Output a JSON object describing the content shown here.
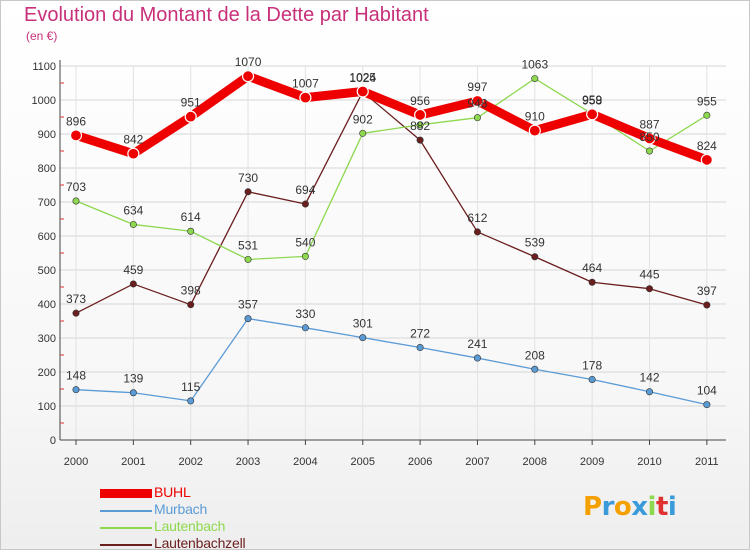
{
  "chart_data": {
    "type": "line",
    "title": "Evolution du Montant de la Dette par Habitant",
    "subtitle": "(en €)",
    "categories": [
      "2000",
      "2001",
      "2002",
      "2003",
      "2004",
      "2005",
      "2006",
      "2007",
      "2008",
      "2009",
      "2010",
      "2011"
    ],
    "ylim": [
      0,
      1100
    ],
    "yticks": [
      0,
      100,
      200,
      300,
      400,
      500,
      600,
      700,
      800,
      900,
      1000,
      1100
    ],
    "grid": true,
    "legend_position": "bottom-left",
    "series": [
      {
        "name": "Lautenbachzell",
        "color": "#6b1e1e",
        "values": [
          373,
          459,
          398,
          730,
          694,
          1024,
          882,
          612,
          539,
          464,
          445,
          397
        ]
      },
      {
        "name": "Lautenbach",
        "color": "#8ed84f",
        "values": [
          703,
          634,
          614,
          531,
          540,
          902,
          927,
          948,
          1063,
          959,
          850,
          955
        ]
      },
      {
        "name": "Murbach",
        "color": "#5b9bd5",
        "values": [
          148,
          139,
          115,
          357,
          330,
          301,
          272,
          241,
          208,
          178,
          142,
          104
        ]
      },
      {
        "name": "BUHL",
        "color": "#ee0000",
        "values": [
          896,
          842,
          951,
          1070,
          1007,
          1025,
          956,
          997,
          910,
          958,
          887,
          824
        ]
      }
    ],
    "point_labels": {
      "Lautenbachzell": [
        "373",
        "459",
        "398",
        "730",
        "694",
        "1024",
        "882",
        "612",
        "539",
        "464",
        "445",
        "397"
      ],
      "Lautenbach": [
        "703",
        "634",
        "614",
        "531",
        "540",
        "902",
        "",
        "948",
        "1063",
        "959",
        "850",
        "955"
      ],
      "Murbach": [
        "148",
        "139",
        "115",
        "357",
        "330",
        "301",
        "272",
        "241",
        "208",
        "178",
        "142",
        "104"
      ],
      "BUHL": [
        "896",
        "842",
        "951",
        "1070",
        "1007",
        "1025",
        "956",
        "997",
        "910",
        "958",
        "887",
        "824"
      ]
    }
  },
  "legend": [
    {
      "name": "BUHL",
      "color": "#ee0000",
      "thick": true
    },
    {
      "name": "Murbach",
      "color": "#5b9bd5",
      "thick": false
    },
    {
      "name": "Lautenbach",
      "color": "#8ed84f",
      "thick": false
    },
    {
      "name": "Lautenbachzell",
      "color": "#6b1e1e",
      "thick": false
    }
  ],
  "logo": {
    "letters": [
      "P",
      "r",
      "o",
      "x",
      "i",
      "t",
      "i"
    ],
    "colors": [
      "#f4a000",
      "#3b9ad9",
      "#f4a000",
      "#3b9ad9",
      "#8ed84f",
      "#e03030",
      "#3b9ad9"
    ]
  }
}
